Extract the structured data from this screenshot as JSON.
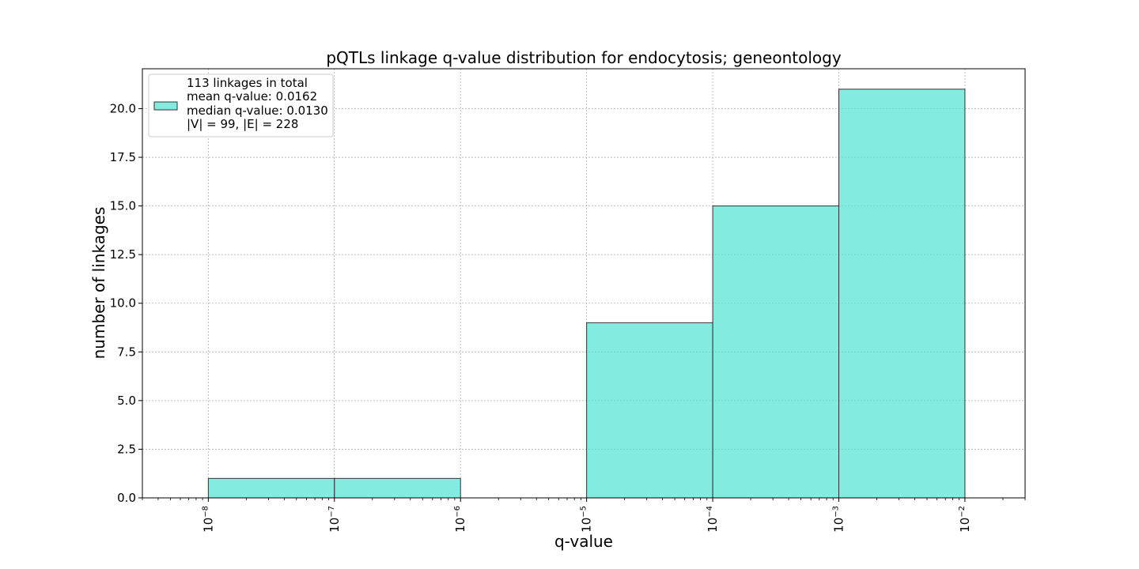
{
  "chart_data": {
    "type": "bar",
    "title": "pQTLs linkage q-value distribution for endocytosis; geneontology",
    "xlabel": "q-value",
    "ylabel": "number of linkages",
    "x_scale": "log",
    "xlim": [
      3e-09,
      0.03
    ],
    "ylim": [
      0,
      22.05
    ],
    "grid": true,
    "bar_color": "#40E0D0",
    "bar_edge_color": "#333333",
    "bins": [
      {
        "left": 1e-08,
        "right": 1e-07,
        "value": 1
      },
      {
        "left": 1e-07,
        "right": 1e-06,
        "value": 1
      },
      {
        "left": 1e-06,
        "right": 1e-05,
        "value": 0
      },
      {
        "left": 1e-05,
        "right": 0.0001,
        "value": 9
      },
      {
        "left": 0.0001,
        "right": 0.001,
        "value": 15
      },
      {
        "left": 0.001,
        "right": 0.01,
        "value": 21
      }
    ],
    "y_ticks": [
      {
        "value": 0,
        "label": "0.0"
      },
      {
        "value": 2.5,
        "label": "2.5"
      },
      {
        "value": 5,
        "label": "5.0"
      },
      {
        "value": 7.5,
        "label": "7.5"
      },
      {
        "value": 10,
        "label": "10.0"
      },
      {
        "value": 12.5,
        "label": "12.5"
      },
      {
        "value": 15,
        "label": "15.0"
      },
      {
        "value": 17.5,
        "label": "17.5"
      },
      {
        "value": 20,
        "label": "20.0"
      }
    ],
    "x_ticks": [
      {
        "exponent": -8,
        "base": "10",
        "sup": "−8"
      },
      {
        "exponent": -7,
        "base": "10",
        "sup": "−7"
      },
      {
        "exponent": -6,
        "base": "10",
        "sup": "−6"
      },
      {
        "exponent": -5,
        "base": "10",
        "sup": "−5"
      },
      {
        "exponent": -4,
        "base": "10",
        "sup": "−4"
      },
      {
        "exponent": -3,
        "base": "10",
        "sup": "−3"
      },
      {
        "exponent": -2,
        "base": "10",
        "sup": "−2"
      }
    ],
    "legend": {
      "placement": "upper-left",
      "lines": [
        "113 linkages in total",
        "mean q-value: 0.0162",
        "median q-value: 0.0130",
        "|V| = 99, |E| = 228"
      ]
    }
  }
}
